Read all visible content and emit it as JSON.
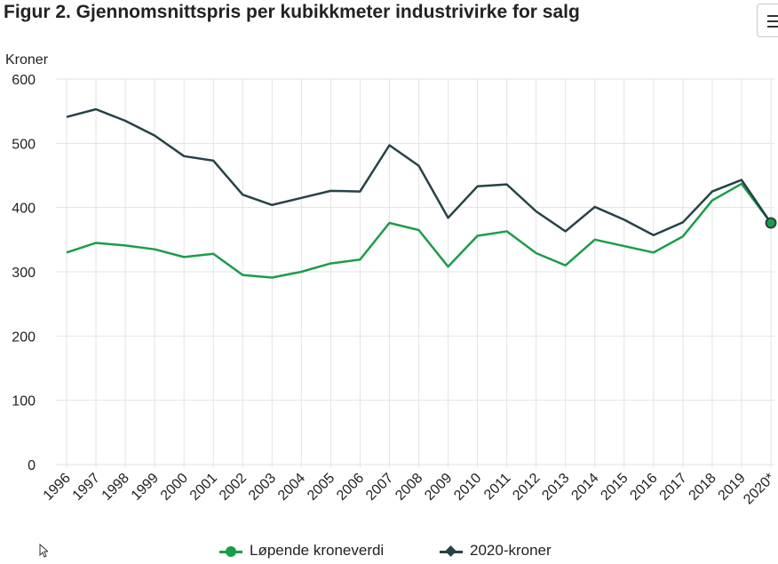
{
  "title": "Figur 2. Gjennomsnittspris per kubikkmeter industrivirke for salg",
  "menu_icon": "hamburger-menu-icon",
  "chart_data": {
    "type": "line",
    "ylabel": "Kroner",
    "xlabel": "",
    "ylim": [
      0,
      600
    ],
    "yticks": [
      0,
      100,
      200,
      300,
      400,
      500,
      600
    ],
    "grid": true,
    "legend_position": "bottom-center",
    "categories": [
      "1996",
      "1997",
      "1998",
      "1999",
      "2000",
      "2001",
      "2002",
      "2003",
      "2004",
      "2005",
      "2006",
      "2007",
      "2008",
      "2009",
      "2010",
      "2011",
      "2012",
      "2013",
      "2014",
      "2015",
      "2016",
      "2017",
      "2018",
      "2019",
      "2020*"
    ],
    "series": [
      {
        "name": "Løpende kroneverdi",
        "color": "#1a9d49",
        "marker": "circle",
        "values": [
          330,
          345,
          341,
          335,
          323,
          328,
          295,
          291,
          300,
          313,
          319,
          376,
          365,
          308,
          356,
          363,
          329,
          310,
          350,
          340,
          330,
          355,
          411,
          437,
          376
        ]
      },
      {
        "name": "2020-kroner",
        "color": "#274247",
        "marker": "diamond",
        "values": [
          541,
          553,
          535,
          512,
          480,
          473,
          420,
          404,
          415,
          426,
          425,
          497,
          465,
          384,
          433,
          436,
          394,
          363,
          401,
          381,
          357,
          377,
          425,
          443,
          376
        ]
      }
    ]
  }
}
